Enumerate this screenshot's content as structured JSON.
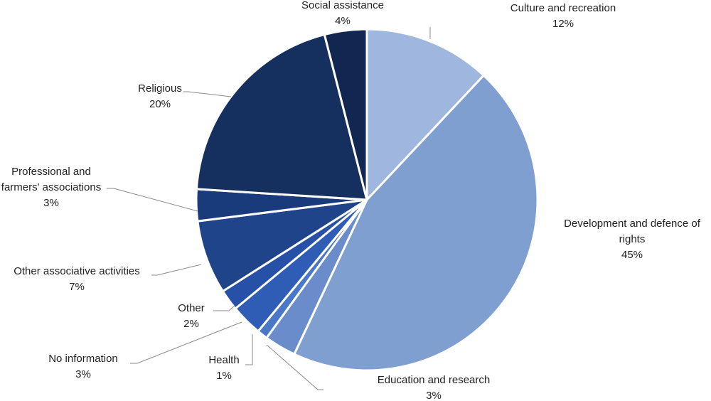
{
  "chart_data": {
    "type": "pie",
    "categories": [
      "Culture and recreation",
      "Development and defence of rights",
      "Education and research",
      "Health",
      "No information",
      "Other",
      "Other associative activities",
      "Professional and farmers' associations",
      "Religious",
      "Social assistance"
    ],
    "values": [
      12,
      45,
      3,
      1,
      3,
      2,
      7,
      3,
      20,
      4
    ],
    "value_labels": [
      "12%",
      "45%",
      "3%",
      "1%",
      "3%",
      "2%",
      "7%",
      "3%",
      "20%",
      "4%"
    ],
    "colors": [
      "#9fb6de",
      "#809fd1",
      "#6a8ccb",
      "#4a78c8",
      "#2f5db6",
      "#2751a6",
      "#1f448a",
      "#1a3b7b",
      "#15305f",
      "#112650"
    ]
  }
}
